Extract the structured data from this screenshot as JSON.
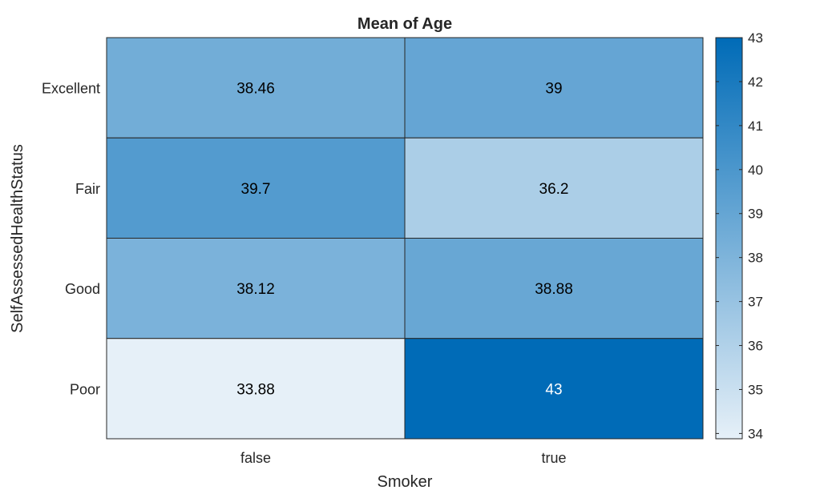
{
  "chart_data": {
    "type": "heatmap",
    "title": "Mean of Age",
    "xlabel": "Smoker",
    "ylabel": "SelfAssessedHealthStatus",
    "x_categories": [
      "false",
      "true"
    ],
    "y_categories": [
      "Excellent",
      "Fair",
      "Good",
      "Poor"
    ],
    "cell_labels": [
      [
        "38.46",
        "39"
      ],
      [
        "39.7",
        "36.2"
      ],
      [
        "38.12",
        "38.88"
      ],
      [
        "33.88",
        "43"
      ]
    ],
    "values": [
      [
        38.46,
        39
      ],
      [
        39.7,
        36.2
      ],
      [
        38.12,
        38.88
      ],
      [
        33.88,
        43
      ]
    ],
    "colorbar": {
      "limits": [
        33.88,
        43
      ],
      "ticks": [
        "34",
        "35",
        "36",
        "37",
        "38",
        "39",
        "40",
        "41",
        "42",
        "43"
      ],
      "tick_values": [
        34,
        35,
        36,
        37,
        38,
        39,
        40,
        41,
        42,
        43
      ],
      "color_low": "#e6f0f8",
      "color_high": "#006bb7"
    },
    "grid": true
  }
}
